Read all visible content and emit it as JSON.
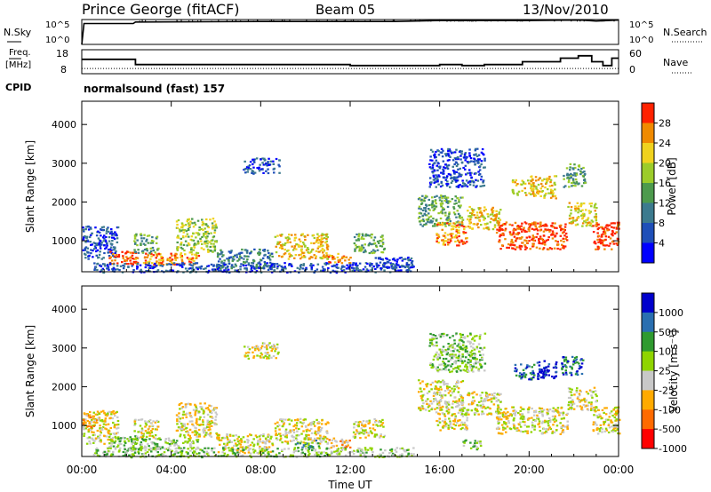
{
  "header": {
    "station": "Prince George (fitACF)",
    "beam": "Beam 05",
    "date": "13/Nov/2010"
  },
  "noise_panel": {
    "left_label": "N.Sky",
    "right_label": "N.Search",
    "left_ticks": [
      "10^5",
      "10^0"
    ],
    "right_ticks": [
      "10^5",
      "10^0"
    ]
  },
  "freq_panel": {
    "left_label_1": "Freq.",
    "left_label_2": "[MHz]",
    "left_ticks": [
      "18",
      "8"
    ],
    "right_label": "Nave",
    "right_ticks": [
      "60",
      "0"
    ],
    "cpid_label": "CPID",
    "cpid_value": "normalsound (fast) 157"
  },
  "colors": {
    "power": [
      "#0000ff",
      "#1f4fb8",
      "#3c7a8e",
      "#4d9a4d",
      "#9ccc2a",
      "#f0d21e",
      "#f08a00",
      "#ff2200"
    ],
    "velocity": [
      "#ff0000",
      "#ff6a00",
      "#ffaa00",
      "#c8c8c8",
      "#8fd400",
      "#2f9a2f",
      "#2a6fb0",
      "#0000cc"
    ],
    "ground_scatter": "#c0c0c0"
  },
  "chart_data": [
    {
      "type": "line",
      "name": "noise",
      "ylabel": "N.Sky",
      "x_hours": [
        0,
        0.1,
        2.3,
        2.4,
        8,
        10,
        14,
        16,
        20,
        22.3,
        23,
        24
      ],
      "sky": [
        0,
        4.2,
        4.2,
        4.5,
        4.6,
        4.6,
        4.6,
        4.8,
        4.8,
        4.9,
        4.7,
        4.9
      ],
      "search_dotted": true
    },
    {
      "type": "line",
      "name": "frequency",
      "ylabel": "Freq. [MHz]",
      "x_hours": [
        0,
        2.3,
        2.4,
        8,
        11.9,
        12,
        15.9,
        16,
        16.5,
        17,
        17.5,
        18,
        19.6,
        19.7,
        21.3,
        21.4,
        22,
        22.2,
        22.8,
        23.3,
        23.7,
        24
      ],
      "freq_mhz": [
        14,
        14,
        11.8,
        11.8,
        11.8,
        11.4,
        11.4,
        11.8,
        11.8,
        11.4,
        11.4,
        11.8,
        11.8,
        13,
        13,
        14.5,
        14.5,
        15.5,
        13,
        11.4,
        14.5,
        14.5
      ],
      "nave_dotted": 13
    },
    {
      "type": "heatmap",
      "name": "power",
      "ylabel": "Slant Range [km]",
      "ylim": [
        200,
        4600
      ],
      "yticks": [
        "1000",
        "2000",
        "3000",
        "4000"
      ],
      "colorbar_label": "Power [dB]",
      "colorbar_ticks": [
        "28",
        "24",
        "20",
        "16",
        "12",
        "8",
        "4"
      ],
      "blobs": [
        {
          "t0": 0.0,
          "t1": 1.6,
          "r0": 550,
          "r1": 1400,
          "v": 6
        },
        {
          "t0": 1.2,
          "t1": 2.6,
          "r0": 420,
          "r1": 750,
          "v": 26
        },
        {
          "t0": 2.2,
          "t1": 5.2,
          "r0": 400,
          "r1": 700,
          "v": 24
        },
        {
          "t0": 2.3,
          "t1": 3.4,
          "r0": 700,
          "r1": 1200,
          "v": 14
        },
        {
          "t0": 4.2,
          "t1": 6.0,
          "r0": 700,
          "r1": 1600,
          "v": 16
        },
        {
          "t0": 6.0,
          "t1": 8.5,
          "r0": 300,
          "r1": 800,
          "v": 8
        },
        {
          "t0": 8.6,
          "t1": 11.0,
          "r0": 550,
          "r1": 1200,
          "v": 18
        },
        {
          "t0": 11.0,
          "t1": 12.0,
          "r0": 450,
          "r1": 700,
          "v": 24
        },
        {
          "t0": 12.1,
          "t1": 13.5,
          "r0": 700,
          "r1": 1200,
          "v": 12
        },
        {
          "t0": 13.0,
          "t1": 14.8,
          "r0": 300,
          "r1": 600,
          "v": 6
        },
        {
          "t0": 7.2,
          "t1": 8.8,
          "r0": 2750,
          "r1": 3150,
          "v": 4
        },
        {
          "t0": 15.0,
          "t1": 17.0,
          "r0": 1400,
          "r1": 2200,
          "v": 12
        },
        {
          "t0": 15.8,
          "t1": 17.2,
          "r0": 900,
          "r1": 1500,
          "v": 24
        },
        {
          "t0": 17.2,
          "t1": 18.7,
          "r0": 1300,
          "r1": 1900,
          "v": 20
        },
        {
          "t0": 18.5,
          "t1": 21.7,
          "r0": 800,
          "r1": 1500,
          "v": 28
        },
        {
          "t0": 21.7,
          "t1": 23.0,
          "r0": 1400,
          "r1": 2000,
          "v": 20
        },
        {
          "t0": 22.8,
          "t1": 24.0,
          "r0": 800,
          "r1": 1500,
          "v": 26
        },
        {
          "t0": 19.2,
          "t1": 20.2,
          "r0": 2200,
          "r1": 2600,
          "v": 20
        },
        {
          "t0": 15.5,
          "t1": 18.0,
          "r0": 2400,
          "r1": 3400,
          "v": 6
        },
        {
          "t0": 20.0,
          "t1": 21.2,
          "r0": 2100,
          "r1": 2700,
          "v": 18
        },
        {
          "t0": 21.5,
          "t1": 22.5,
          "r0": 2400,
          "r1": 3000,
          "v": 14
        },
        {
          "t0": 0.5,
          "t1": 14.8,
          "r0": 200,
          "r1": 450,
          "v": 5
        }
      ]
    },
    {
      "type": "heatmap",
      "name": "velocity",
      "ylabel": "Slant Range [km]",
      "ylim": [
        200,
        4600
      ],
      "yticks": [
        "1000",
        "2000",
        "3000",
        "4000"
      ],
      "xticks": [
        "00:00",
        "04:00",
        "08:00",
        "12:00",
        "16:00",
        "20:00",
        "00:00"
      ],
      "xlabel": "Time UT",
      "colorbar_label": "Velocity [m s⁻¹]",
      "colorbar_ticks": [
        "1000",
        "500",
        "100",
        "25",
        "-25",
        "-100",
        "-500",
        "-1000"
      ],
      "blobs": [
        {
          "t0": 0.0,
          "t1": 1.6,
          "r0": 550,
          "r1": 1400,
          "v": 3
        },
        {
          "t0": 0.0,
          "t1": 0.6,
          "r0": 900,
          "r1": 1300,
          "v": 2
        },
        {
          "t0": 1.2,
          "t1": 2.6,
          "r0": 420,
          "r1": 750,
          "v": 4
        },
        {
          "t0": 2.2,
          "t1": 5.2,
          "r0": 400,
          "r1": 700,
          "v": 4
        },
        {
          "t0": 2.3,
          "t1": 3.4,
          "r0": 700,
          "r1": 1200,
          "v": 3
        },
        {
          "t0": 4.2,
          "t1": 6.0,
          "r0": 700,
          "r1": 1600,
          "v": 3
        },
        {
          "t0": 6.0,
          "t1": 8.5,
          "r0": 300,
          "r1": 800,
          "v": 3
        },
        {
          "t0": 8.6,
          "t1": 11.0,
          "r0": 550,
          "r1": 1200,
          "v": 3
        },
        {
          "t0": 9.5,
          "t1": 10.6,
          "r0": 450,
          "r1": 650,
          "v": 5
        },
        {
          "t0": 11.0,
          "t1": 12.0,
          "r0": 450,
          "r1": 700,
          "v": 2
        },
        {
          "t0": 12.1,
          "t1": 13.5,
          "r0": 700,
          "r1": 1200,
          "v": 3
        },
        {
          "t0": 7.2,
          "t1": 8.8,
          "r0": 2750,
          "r1": 3150,
          "v": 3
        },
        {
          "t0": 15.0,
          "t1": 17.0,
          "r0": 1400,
          "r1": 2200,
          "v": 3
        },
        {
          "t0": 15.8,
          "t1": 17.2,
          "r0": 900,
          "r1": 1500,
          "v": 3
        },
        {
          "t0": 17.2,
          "t1": 18.7,
          "r0": 1300,
          "r1": 1900,
          "v": 3
        },
        {
          "t0": 18.5,
          "t1": 21.7,
          "r0": 800,
          "r1": 1500,
          "v": 3
        },
        {
          "t0": 21.7,
          "t1": 23.0,
          "r0": 1400,
          "r1": 2000,
          "v": 3
        },
        {
          "t0": 22.8,
          "t1": 24.0,
          "r0": 800,
          "r1": 1500,
          "v": 3
        },
        {
          "t0": 19.3,
          "t1": 20.2,
          "r0": 2200,
          "r1": 2600,
          "v": 6
        },
        {
          "t0": 21.4,
          "t1": 22.4,
          "r0": 2300,
          "r1": 2800,
          "v": 6
        },
        {
          "t0": 15.5,
          "t1": 18.0,
          "r0": 2400,
          "r1": 3400,
          "v": 4
        },
        {
          "t0": 20.3,
          "t1": 21.2,
          "r0": 2200,
          "r1": 2700,
          "v": 7
        },
        {
          "t0": 0.5,
          "t1": 14.8,
          "r0": 200,
          "r1": 450,
          "v": 4
        },
        {
          "t0": 17.0,
          "t1": 17.8,
          "r0": 400,
          "r1": 650,
          "v": 4
        }
      ]
    }
  ]
}
